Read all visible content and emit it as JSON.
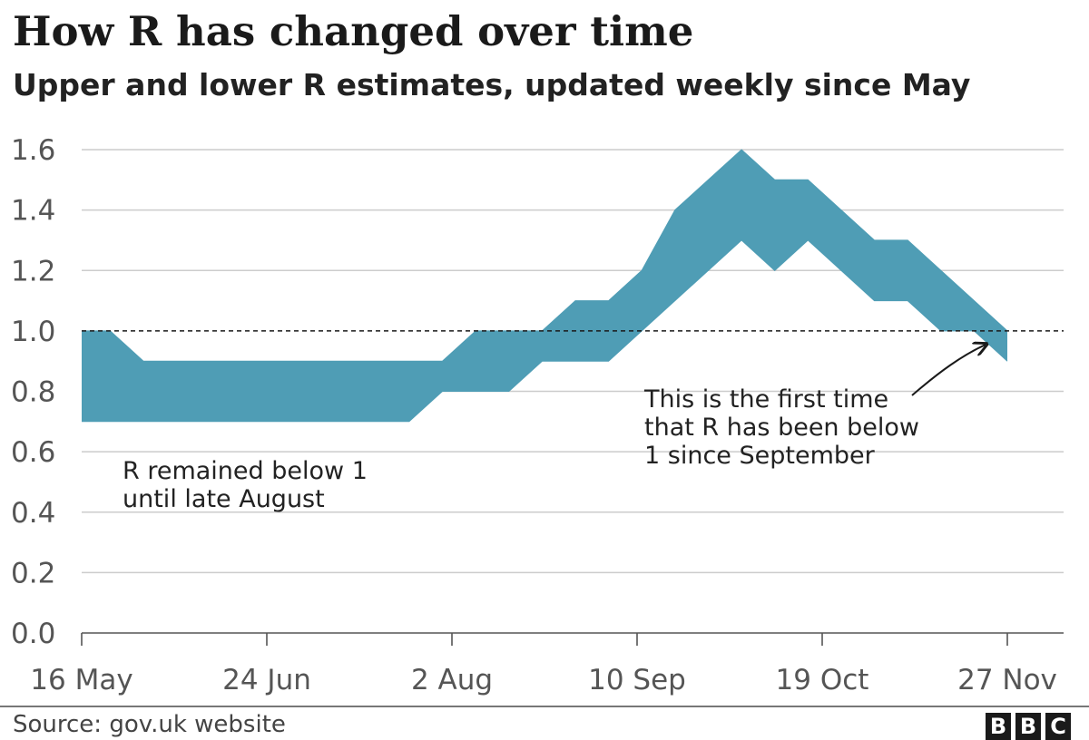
{
  "title": "How R has changed over time",
  "subtitle": "Upper and lower R estimates, updated weekly since May",
  "source": "Source: gov.uk website",
  "logo": [
    "B",
    "B",
    "C"
  ],
  "colors": {
    "band": "#4f9db5",
    "grid": "#cccccc",
    "text": "#222222",
    "reference": "#1a1a1a"
  },
  "chart_data": {
    "type": "area",
    "xlim": [
      "2020-05-16",
      "2020-11-27"
    ],
    "ylim": [
      0,
      1.6
    ],
    "y_ticks": [
      0.0,
      0.2,
      0.4,
      0.6,
      0.8,
      1.0,
      1.2,
      1.4,
      1.6
    ],
    "y_tick_labels": [
      "0.0",
      "0.2",
      "0.4",
      "0.6",
      "0.8",
      "1.0",
      "1.2",
      "1.4",
      "1.6"
    ],
    "x_ticks": [
      "2020-05-16",
      "2020-06-24",
      "2020-08-02",
      "2020-09-10",
      "2020-10-19",
      "2020-11-27"
    ],
    "x_tick_labels": [
      "16 May",
      "24 Jun",
      "2 Aug",
      "10 Sep",
      "19 Oct",
      "27 Nov"
    ],
    "grid": true,
    "reference_line": {
      "y": 1.0,
      "style": "dashed"
    },
    "upper": [
      {
        "x": "2020-05-16",
        "y": 1.0
      },
      {
        "x": "2020-05-22",
        "y": 1.0
      },
      {
        "x": "2020-05-29",
        "y": 0.9
      },
      {
        "x": "2020-07-31",
        "y": 0.9
      },
      {
        "x": "2020-08-07",
        "y": 1.0
      },
      {
        "x": "2020-08-21",
        "y": 1.0
      },
      {
        "x": "2020-08-28",
        "y": 1.1
      },
      {
        "x": "2020-09-04",
        "y": 1.1
      },
      {
        "x": "2020-09-11",
        "y": 1.2
      },
      {
        "x": "2020-09-18",
        "y": 1.4
      },
      {
        "x": "2020-10-02",
        "y": 1.6
      },
      {
        "x": "2020-10-09",
        "y": 1.5
      },
      {
        "x": "2020-10-16",
        "y": 1.5
      },
      {
        "x": "2020-10-30",
        "y": 1.3
      },
      {
        "x": "2020-11-06",
        "y": 1.3
      },
      {
        "x": "2020-11-27",
        "y": 1.0
      }
    ],
    "lower": [
      {
        "x": "2020-05-16",
        "y": 0.7
      },
      {
        "x": "2020-07-24",
        "y": 0.7
      },
      {
        "x": "2020-07-31",
        "y": 0.8
      },
      {
        "x": "2020-08-14",
        "y": 0.8
      },
      {
        "x": "2020-08-21",
        "y": 0.9
      },
      {
        "x": "2020-09-04",
        "y": 0.9
      },
      {
        "x": "2020-10-02",
        "y": 1.3
      },
      {
        "x": "2020-10-09",
        "y": 1.2
      },
      {
        "x": "2020-10-16",
        "y": 1.3
      },
      {
        "x": "2020-10-30",
        "y": 1.1
      },
      {
        "x": "2020-11-06",
        "y": 1.1
      },
      {
        "x": "2020-11-13",
        "y": 1.0
      },
      {
        "x": "2020-11-20",
        "y": 1.0
      },
      {
        "x": "2020-11-27",
        "y": 0.9
      }
    ],
    "annotations": [
      {
        "lines": [
          "R remained below 1",
          "until late August"
        ]
      },
      {
        "lines": [
          "This is the first time",
          "that R has been below",
          "1 since September"
        ]
      }
    ]
  }
}
